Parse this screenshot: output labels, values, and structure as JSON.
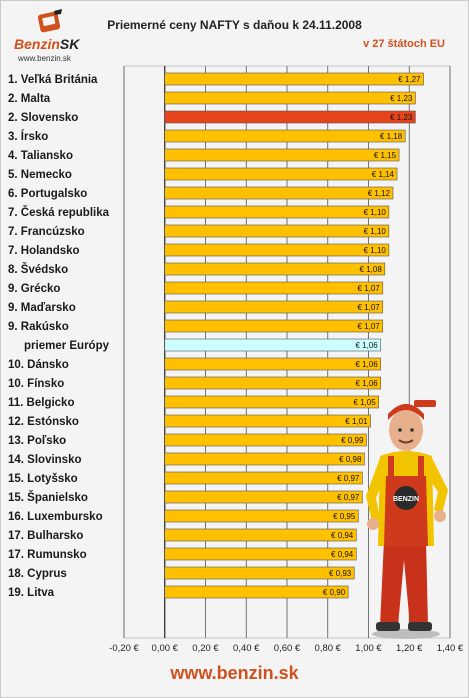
{
  "header": {
    "logo_name_main": "Benzin",
    "logo_name_sk": "SK",
    "logo_url": "www.benzin.sk",
    "title": "Priemerné ceny NAFTY s daňou k 24.11.2008",
    "subtitle": "v 27 štátoch EU"
  },
  "footer": {
    "url": "www.benzin.sk"
  },
  "colors": {
    "bar": "#ffc000",
    "bar_highlight": "#e8441c",
    "bar_average": "#ccffff",
    "label_highlight": "#c0502a",
    "label_average": "#5aaee6"
  },
  "chart_data": {
    "type": "bar",
    "orientation": "horizontal",
    "title": "Priemerné ceny NAFTY s daňou k 24.11.2008",
    "subtitle": "v 27 štátoch EU",
    "xlim": [
      -0.2,
      1.4
    ],
    "xticks": [
      -0.2,
      0,
      0.2,
      0.4,
      0.6,
      0.8,
      1.0,
      1.2,
      1.4
    ],
    "xtick_labels": [
      "-0,20 €",
      "0,00 €",
      "0,20 €",
      "0,40 €",
      "0,60 €",
      "0,80 €",
      "1,00 €",
      "1,20 €",
      "1,40 €"
    ],
    "grid": true,
    "legend": "none",
    "categories": [
      "1. Veľká Británia",
      "2. Malta",
      "2. Slovensko",
      "3. Írsko",
      "4. Taliansko",
      "5. Nemecko",
      "6. Portugalsko",
      "7. Česká republika",
      "7. Francúzsko",
      "7. Holandsko",
      "8. Švédsko",
      "9. Grécko",
      "9. Maďarsko",
      "9. Rakúsko",
      "priemer Európy",
      "10. Dánsko",
      "10. Fínsko",
      "11. Belgicko",
      "12. Estónsko",
      "13. Poľsko",
      "14. Slovinsko",
      "15. Lotyšsko",
      "15. Španielsko",
      "16. Luxembursko",
      "17. Bulharsko",
      "17. Rumunsko",
      "18. Cyprus",
      "19. Litva"
    ],
    "values": [
      1.27,
      1.23,
      1.23,
      1.18,
      1.15,
      1.14,
      1.12,
      1.1,
      1.1,
      1.1,
      1.08,
      1.07,
      1.07,
      1.07,
      1.06,
      1.06,
      1.06,
      1.05,
      1.01,
      0.99,
      0.98,
      0.97,
      0.97,
      0.95,
      0.94,
      0.94,
      0.93,
      0.9
    ],
    "data_labels": [
      "€ 1,27",
      "€ 1,23",
      "€ 1,23",
      "€ 1,18",
      "€ 1,15",
      "€ 1,14",
      "€ 1,12",
      "€ 1,10",
      "€ 1,10",
      "€ 1,10",
      "€ 1,08",
      "€ 1,07",
      "€ 1,07",
      "€ 1,07",
      "€ 1,06",
      "€ 1,06",
      "€ 1,06",
      "€ 1,05",
      "€ 1,01",
      "€ 0,99",
      "€ 0,98",
      "€ 0,97",
      "€ 0,97",
      "€ 0,95",
      "€ 0,94",
      "€ 0,94",
      "€ 0,93",
      "€ 0,90"
    ],
    "highlight_index": 2,
    "average_index": 14
  }
}
